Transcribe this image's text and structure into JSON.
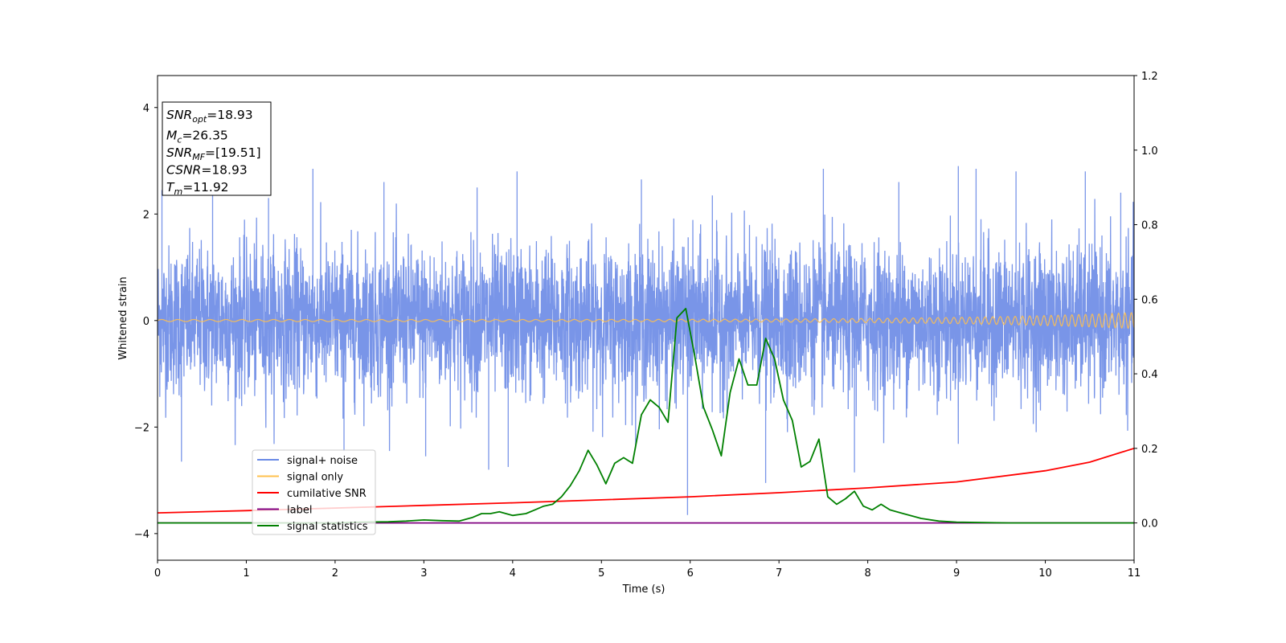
{
  "chart_data": {
    "type": "line",
    "xlabel": "Time (s)",
    "ylabel": "Whitened strain",
    "xlim": [
      0,
      11
    ],
    "ylim_left": [
      -4.5,
      4.6
    ],
    "ylim_right": [
      -0.1,
      1.2
    ],
    "x_ticks": [
      0,
      1,
      2,
      3,
      4,
      5,
      6,
      7,
      8,
      9,
      10,
      11
    ],
    "y_ticks_left": [
      -4,
      -2,
      0,
      2,
      4
    ],
    "y_ticks_right": [
      "0.0",
      "0.2",
      "0.4",
      "0.6",
      "0.8",
      "1.0",
      "1.2"
    ],
    "info_box": [
      {
        "base": "SNR",
        "sub": "opt",
        "value": "=18.93"
      },
      {
        "base": "M",
        "sub": "c",
        "value": "=26.35"
      },
      {
        "base": "SNR",
        "sub": "MF",
        "value": "=[19.51]"
      },
      {
        "base": "CSNR",
        "sub": "",
        "value": "=18.93"
      },
      {
        "base": "T",
        "sub": "m",
        "value": "=11.92"
      }
    ],
    "legend_position": "lower-left",
    "colors": {
      "signal_noise": "#6a8ae6",
      "signal_only": "#ffc04d",
      "cumulative_snr": "#ff0000",
      "label": "#800080",
      "signal_statistics": "#008000"
    },
    "series": [
      {
        "name": "signal+ noise",
        "axis": "left",
        "kind": "noise",
        "amplitude_typical": 1.2,
        "range": [
          -3.65,
          2.9
        ],
        "spikes": [
          {
            "x": 0.05,
            "y": 2.45
          },
          {
            "x": 0.27,
            "y": -2.65
          },
          {
            "x": 0.62,
            "y": 2.5
          },
          {
            "x": 1.25,
            "y": 2.3
          },
          {
            "x": 1.75,
            "y": 2.85
          },
          {
            "x": 2.1,
            "y": -2.45
          },
          {
            "x": 2.55,
            "y": 2.6
          },
          {
            "x": 3.02,
            "y": -2.55
          },
          {
            "x": 3.6,
            "y": 2.5
          },
          {
            "x": 3.73,
            "y": -2.8
          },
          {
            "x": 3.95,
            "y": -2.75
          },
          {
            "x": 4.05,
            "y": 2.8
          },
          {
            "x": 5.45,
            "y": 2.65
          },
          {
            "x": 5.97,
            "y": -3.65
          },
          {
            "x": 6.25,
            "y": 2.35
          },
          {
            "x": 6.85,
            "y": -3.05
          },
          {
            "x": 7.5,
            "y": 2.85
          },
          {
            "x": 7.85,
            "y": -2.85
          },
          {
            "x": 8.35,
            "y": 2.6
          },
          {
            "x": 9.02,
            "y": 2.9
          },
          {
            "x": 9.22,
            "y": 2.85
          },
          {
            "x": 9.67,
            "y": 2.8
          },
          {
            "x": 10.45,
            "y": 2.8
          },
          {
            "x": 10.85,
            "y": 2.4
          }
        ]
      },
      {
        "name": "signal only",
        "axis": "left",
        "kind": "chirp",
        "amplitude_start": 0.02,
        "amplitude_end": 0.15,
        "freq_start_hz": 5.5,
        "freq_end_hz": 14
      },
      {
        "name": "cumilative SNR",
        "axis": "right",
        "x": [
          0,
          1,
          2,
          3,
          4,
          5,
          6,
          7,
          8,
          9,
          10,
          10.5,
          11
        ],
        "y": [
          0.027,
          0.033,
          0.04,
          0.047,
          0.054,
          0.062,
          0.07,
          0.081,
          0.094,
          0.11,
          0.14,
          0.163,
          0.2
        ]
      },
      {
        "name": "label",
        "axis": "right",
        "x": [
          0,
          11
        ],
        "y": [
          0,
          0
        ]
      },
      {
        "name": "signal statistics",
        "axis": "right",
        "x": [
          0,
          0.5,
          1,
          1.5,
          2,
          2.3,
          2.6,
          2.8,
          3.0,
          3.2,
          3.4,
          3.55,
          3.65,
          3.75,
          3.85,
          4.0,
          4.15,
          4.25,
          4.35,
          4.45,
          4.55,
          4.65,
          4.75,
          4.85,
          4.95,
          5.05,
          5.15,
          5.25,
          5.35,
          5.45,
          5.55,
          5.65,
          5.75,
          5.85,
          5.95,
          6.05,
          6.15,
          6.25,
          6.35,
          6.45,
          6.55,
          6.65,
          6.75,
          6.85,
          6.95,
          7.05,
          7.15,
          7.25,
          7.35,
          7.45,
          7.55,
          7.65,
          7.75,
          7.85,
          7.95,
          8.05,
          8.15,
          8.25,
          8.4,
          8.6,
          8.8,
          9.0,
          9.3,
          9.6,
          10,
          10.5,
          11
        ],
        "y": [
          0.0,
          0.0,
          0.0,
          0.0,
          0.0,
          0.002,
          0.003,
          0.005,
          0.008,
          0.006,
          0.005,
          0.015,
          0.025,
          0.025,
          0.03,
          0.02,
          0.025,
          0.035,
          0.045,
          0.05,
          0.07,
          0.1,
          0.14,
          0.195,
          0.155,
          0.105,
          0.16,
          0.175,
          0.16,
          0.29,
          0.33,
          0.31,
          0.27,
          0.55,
          0.575,
          0.45,
          0.31,
          0.25,
          0.18,
          0.35,
          0.44,
          0.37,
          0.37,
          0.495,
          0.44,
          0.33,
          0.275,
          0.15,
          0.165,
          0.225,
          0.07,
          0.05,
          0.065,
          0.085,
          0.045,
          0.035,
          0.05,
          0.035,
          0.025,
          0.012,
          0.005,
          0.002,
          0.001,
          0.0,
          0.0,
          0.0,
          0.0
        ]
      }
    ]
  }
}
